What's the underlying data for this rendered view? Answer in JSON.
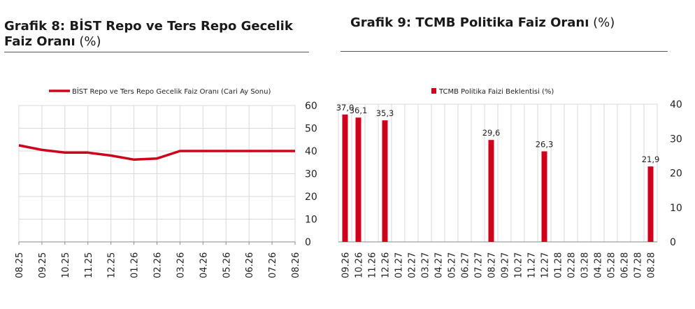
{
  "chart8": {
    "title_bold": "Grafik 8:  BİST Repo ve Ters Repo Gecelik Faiz Oranı",
    "title_unit": " (%)",
    "chart_data": {
      "type": "line",
      "title": "Grafik 8:  BİST Repo ve Ters Repo Gecelik Faiz Oranı (%)",
      "categories": [
        "08.25",
        "09.25",
        "10.25",
        "11.25",
        "12.25",
        "01.26",
        "02.26",
        "03.26",
        "04.26",
        "05.26",
        "06.26",
        "07.26",
        "08.26"
      ],
      "series": [
        {
          "name": "BİST Repo ve Ters Repo Gecelik Faiz Oranı (Cari Ay Sonu)",
          "values": [
            42.5,
            40.5,
            39.3,
            39.3,
            38.0,
            36.2,
            36.7,
            40.0,
            40.0,
            40.0,
            40.0,
            40.0,
            40.0
          ]
        }
      ],
      "ylim": [
        0,
        60
      ],
      "yticks": [
        "0",
        "10",
        "20",
        "30",
        "40",
        "50",
        "60"
      ],
      "y_axis_side": "right",
      "legend_position": "top",
      "grid": true,
      "color": "#d0021b"
    }
  },
  "chart9": {
    "title_bold": "Grafik 9: TCMB Politika Faiz Oranı",
    "title_unit": " (%)",
    "chart_data": {
      "type": "bar",
      "title": "Grafik 9: TCMB Politika Faiz Oranı (%)",
      "categories": [
        "09.26",
        "10.26",
        "11.26",
        "12.26",
        "01.27",
        "02.27",
        "03.27",
        "04.27",
        "05.27",
        "06.27",
        "07.27",
        "08.27",
        "09.27",
        "10.27",
        "11.27",
        "12.27",
        "01.28",
        "02.28",
        "03.28",
        "04.28",
        "05.28",
        "06.28",
        "07.28",
        "08.28"
      ],
      "series": [
        {
          "name": "TCMB Politika Faizi Beklentisi (%)",
          "values": [
            37.0,
            36.1,
            null,
            35.3,
            null,
            null,
            null,
            null,
            null,
            null,
            null,
            29.6,
            null,
            null,
            null,
            26.3,
            null,
            null,
            null,
            null,
            null,
            null,
            null,
            21.9
          ],
          "labels": [
            "37,0",
            "36,1",
            "",
            "35,3",
            "",
            "",
            "",
            "",
            "",
            "",
            "",
            "29,6",
            "",
            "",
            "",
            "26,3",
            "",
            "",
            "",
            "",
            "",
            "",
            "",
            "21,9"
          ]
        }
      ],
      "ylim": [
        0,
        40
      ],
      "yticks": [
        "0",
        "10",
        "20",
        "30",
        "40"
      ],
      "y_axis_side": "right",
      "legend_position": "top",
      "grid": true,
      "color": "#d0021b"
    }
  }
}
